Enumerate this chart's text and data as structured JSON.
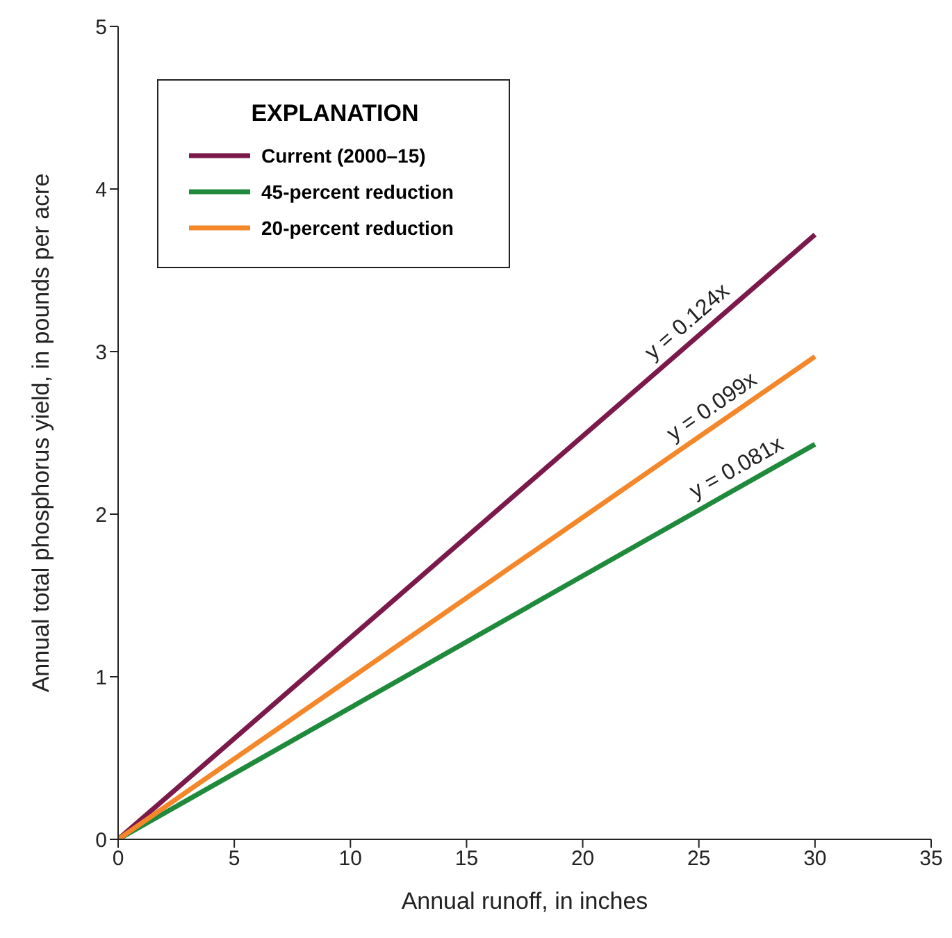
{
  "chart_data": {
    "type": "line",
    "xlabel": "Annual runoff, in inches",
    "ylabel": "Annual total phosphorus yield, in pounds per acre",
    "legend_title": "EXPLANATION",
    "legend": "top left",
    "grid": false,
    "marker": "none",
    "line_style": "solid",
    "x": [
      0,
      30
    ],
    "series": [
      {
        "name": "Current (2000–15)",
        "color": "#7b1a4a",
        "values": [
          0,
          3.72
        ]
      },
      {
        "name": "45-percent reduction",
        "color": "#1f8a3c",
        "values": [
          0,
          2.43
        ]
      },
      {
        "name": "20-percent reduction",
        "color": "#f4872a",
        "values": [
          0,
          2.97
        ]
      }
    ],
    "xlim": [
      0,
      35
    ],
    "xticks": [
      0,
      5,
      10,
      15,
      20,
      25,
      30,
      35
    ],
    "ylim": [
      0,
      5
    ],
    "yticks": [
      0,
      1,
      2,
      3,
      4,
      5
    ],
    "annotations": [
      {
        "text": "y = 0.124x",
        "x": 25,
        "y": 3.1
      },
      {
        "text": "y = 0.099x",
        "x": 26,
        "y": 2.57
      },
      {
        "text": "y = 0.081x",
        "x": 27,
        "y": 2.19
      }
    ]
  }
}
